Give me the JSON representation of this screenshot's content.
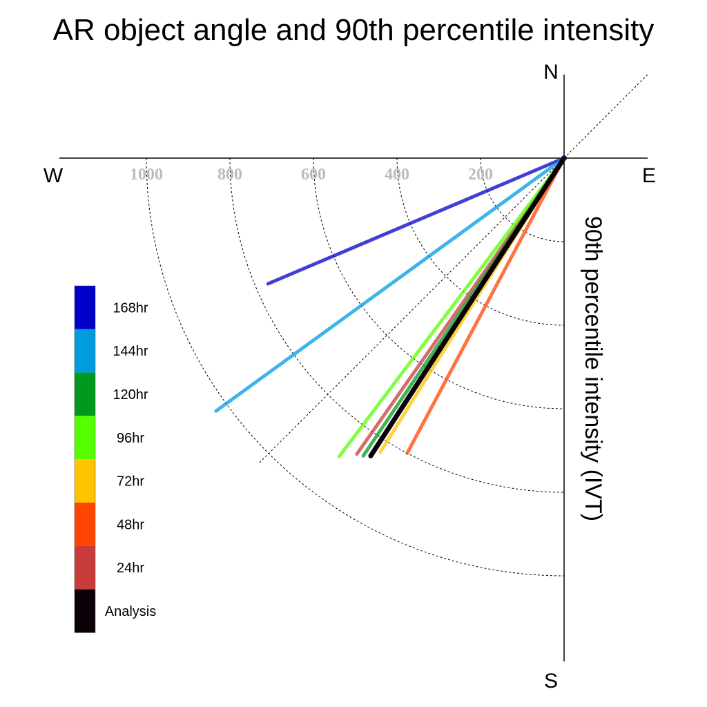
{
  "chart_data": {
    "type": "polar-vector",
    "title": "AR object angle and 90th percentile intensity",
    "ylabel": "90th percentile intensity (IVT)",
    "compass": {
      "north": "N",
      "south": "S",
      "east": "E",
      "west": "W"
    },
    "radial_ticks": [
      "1000",
      "800",
      "600",
      "400",
      "200"
    ],
    "radial_tick_values": [
      1000,
      800,
      600,
      400,
      200
    ],
    "rlim": [
      0,
      1200
    ],
    "grid": true,
    "legend_position": "left",
    "series": [
      {
        "name": "168hr",
        "angle_deg": 247,
        "intensity": 770,
        "color": "#0000c8"
      },
      {
        "name": "144hr",
        "angle_deg": 234,
        "intensity": 1030,
        "color": "#009bdf"
      },
      {
        "name": "120hr",
        "angle_deg": 214,
        "intensity": 860,
        "color": "#00991f"
      },
      {
        "name": "96hr",
        "angle_deg": 217,
        "intensity": 895,
        "color": "#55ff00"
      },
      {
        "name": "72hr",
        "angle_deg": 212,
        "intensity": 830,
        "color": "#ffc300"
      },
      {
        "name": "48hr",
        "angle_deg": 208,
        "intensity": 800,
        "color": "#ff4400"
      },
      {
        "name": "24hr",
        "angle_deg": 215,
        "intensity": 865,
        "color": "#c83c3c"
      },
      {
        "name": "Analysis",
        "angle_deg": 213,
        "intensity": 850,
        "color": "#0a0008"
      }
    ]
  }
}
